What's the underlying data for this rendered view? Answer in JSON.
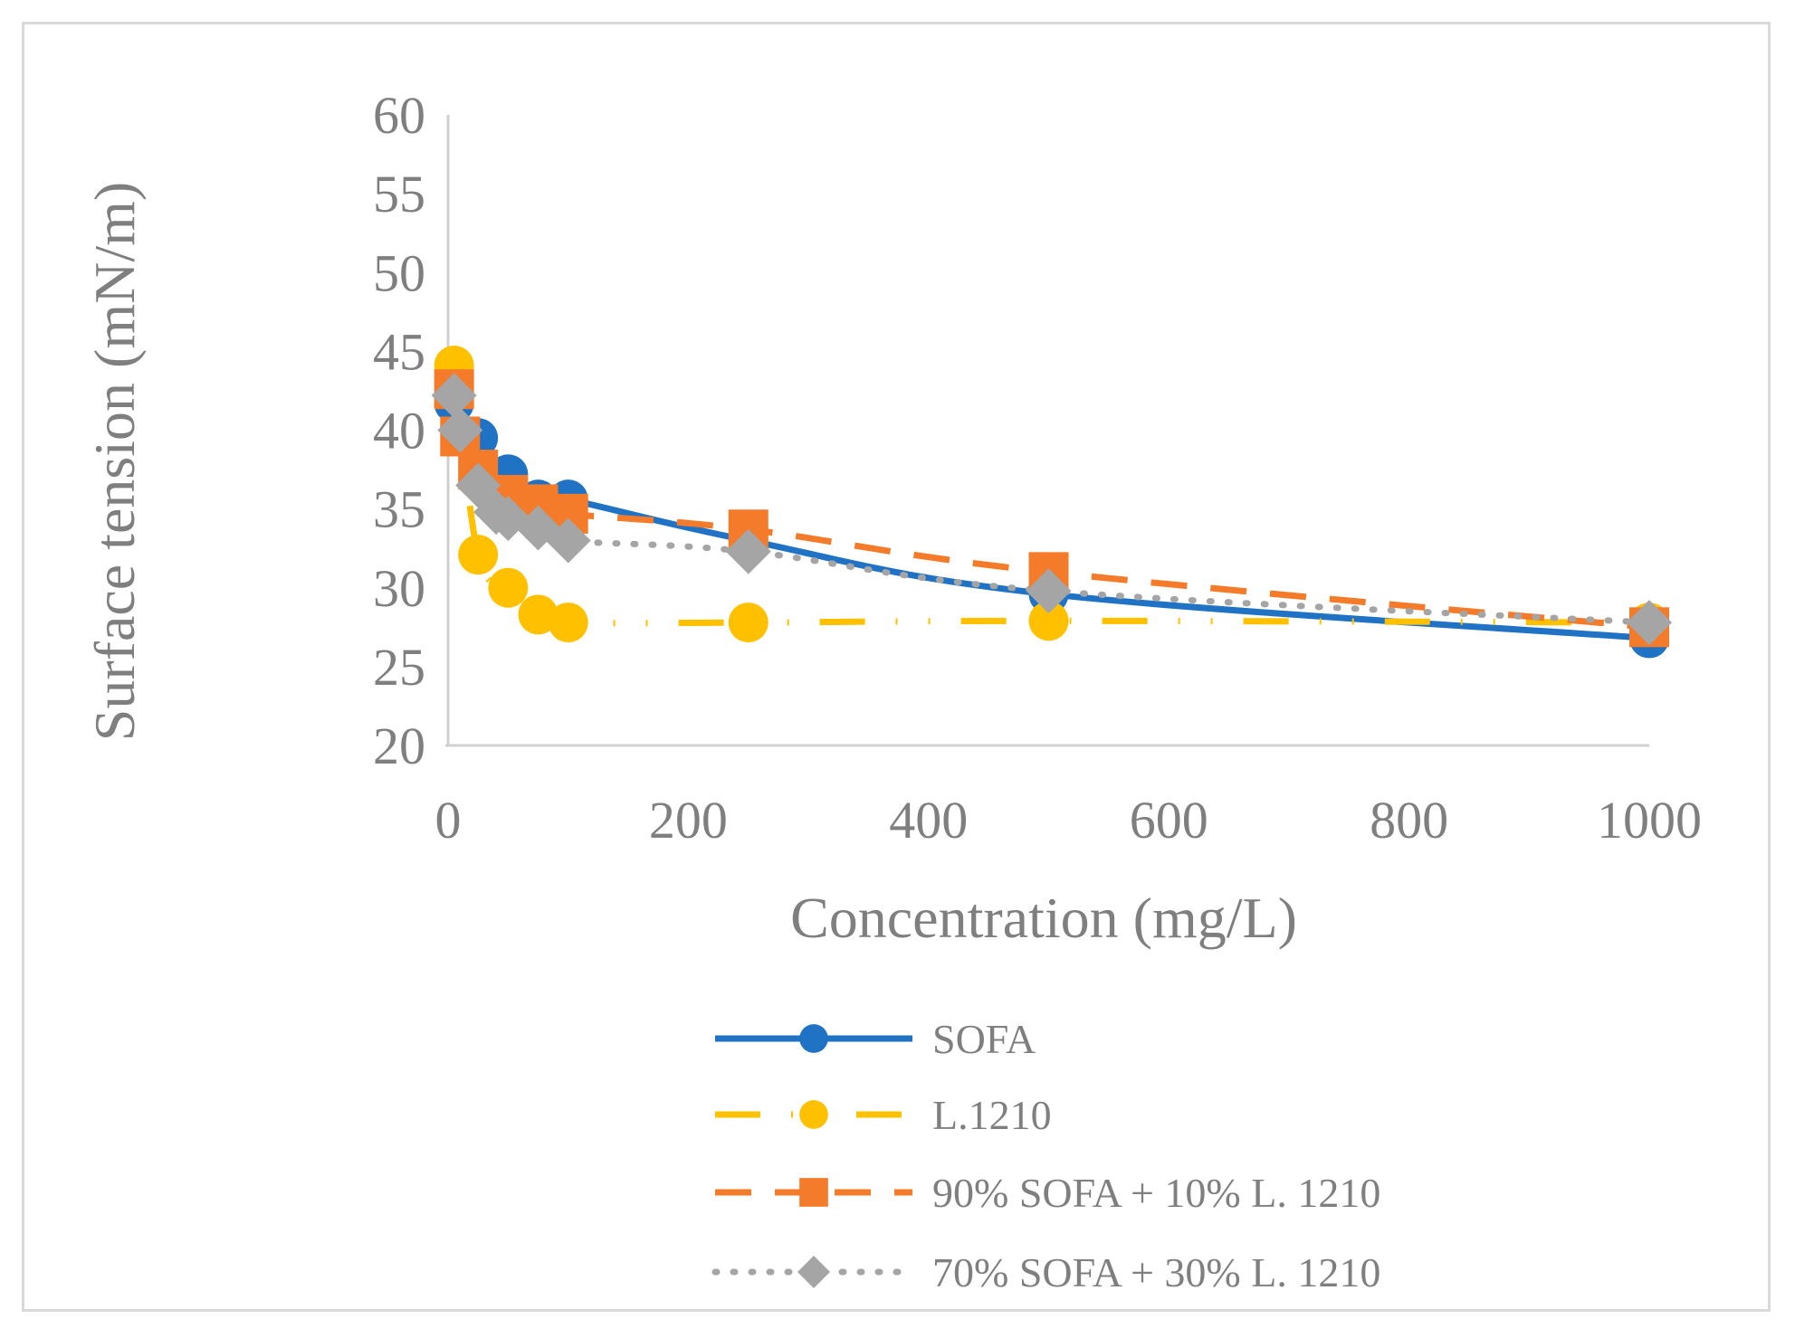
{
  "chart_data": {
    "type": "line",
    "title": "",
    "xlabel": "Concentration (mg/L)",
    "ylabel": "Surface tension (mN/m)",
    "xlim": [
      0,
      1000
    ],
    "ylim": [
      20,
      60
    ],
    "xticks": [
      0,
      200,
      400,
      600,
      800,
      1000
    ],
    "yticks": [
      20,
      25,
      30,
      35,
      40,
      45,
      50,
      55,
      60
    ],
    "grid": false,
    "legend_position": "bottom",
    "series": [
      {
        "name": "SOFA",
        "color": "#1f72c4",
        "line_style": "solid",
        "marker": "circle",
        "x": [
          5,
          25,
          50,
          75,
          100,
          250,
          500,
          1000
        ],
        "y": [
          41.7,
          39.5,
          37.2,
          35.6,
          35.6,
          33.0,
          29.6,
          26.8
        ]
      },
      {
        "name": "L.1210",
        "color": "#ffc000",
        "line_style": "dash-dot",
        "marker": "circle",
        "x": [
          5,
          25,
          50,
          75,
          100,
          250,
          500,
          1000
        ],
        "y": [
          44.1,
          32.1,
          30.0,
          28.3,
          27.8,
          27.8,
          27.9,
          27.8
        ]
      },
      {
        "name": "90% SOFA + 10% L. 1210",
        "color": "#f47b2a",
        "line_style": "dashed",
        "marker": "square",
        "x": [
          5,
          10,
          25,
          50,
          75,
          100,
          250,
          500,
          1000
        ],
        "y": [
          42.6,
          39.6,
          37.5,
          35.9,
          35.3,
          34.7,
          33.7,
          31.0,
          27.5
        ]
      },
      {
        "name": "70% SOFA + 30% L. 1210",
        "color": "#a5a5a5",
        "line_style": "dotted",
        "marker": "diamond",
        "x": [
          5,
          10,
          25,
          40,
          50,
          75,
          100,
          250,
          500,
          1000
        ],
        "y": [
          42.2,
          40.0,
          36.5,
          34.8,
          34.4,
          33.8,
          33.0,
          32.3,
          29.8,
          27.8
        ]
      }
    ]
  }
}
